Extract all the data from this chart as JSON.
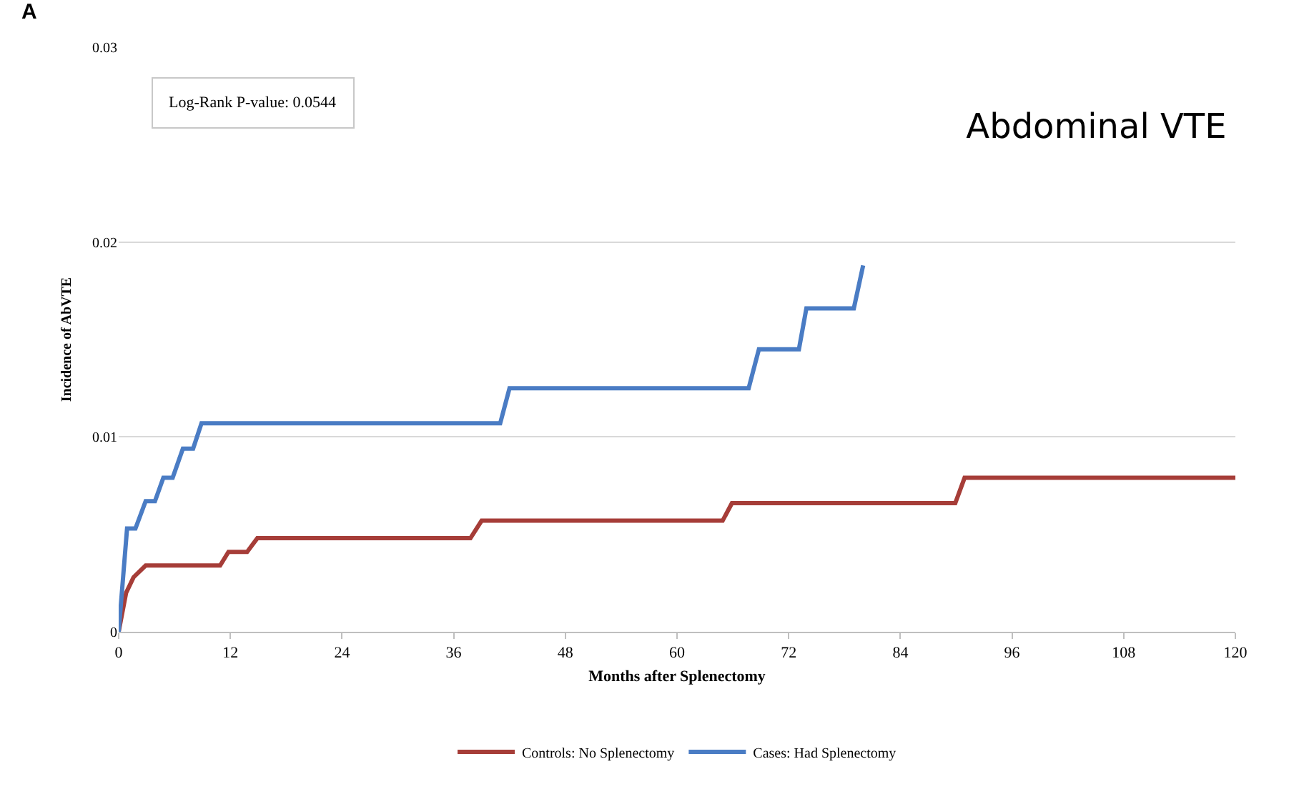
{
  "chart_data": {
    "type": "line",
    "title": "Abdominal VTE",
    "xlabel": "Months after Splenectomy",
    "ylabel": "Incidence of AbVTE",
    "annotations": [
      "A",
      "Log-Rank P-value: 0.0544"
    ],
    "xlim": [
      0,
      120
    ],
    "xticks": [
      0,
      12,
      24,
      36,
      48,
      60,
      72,
      84,
      96,
      108,
      120
    ],
    "ylim": [
      0,
      0.03
    ],
    "yticks": [
      0,
      0.01,
      0.02,
      0.03
    ],
    "grid": "y",
    "legend": "bottom",
    "marker": "none",
    "line_style": "solid",
    "series": [
      {
        "name": "Controls: No Splenectomy",
        "color": "#a63d38",
        "x": [
          0,
          0.8,
          1.6,
          2.9,
          10.9,
          11.8,
          13.8,
          14.9,
          37.8,
          39.0,
          64.9,
          65.9,
          89.9,
          90.9,
          120
        ],
        "values": [
          0,
          0.002,
          0.0028,
          0.0034,
          0.0034,
          0.0041,
          0.0041,
          0.0048,
          0.0048,
          0.0057,
          0.0057,
          0.0066,
          0.0066,
          0.0079,
          0.0079
        ]
      },
      {
        "name": "Cases: Had Splenectomy",
        "color": "#4a7cc4",
        "x": [
          0,
          0.9,
          1.8,
          2.9,
          3.9,
          4.8,
          5.8,
          6.9,
          8.0,
          8.9,
          41.0,
          42.0,
          67.7,
          68.8,
          73.1,
          73.9,
          79.0,
          80.0
        ],
        "values": [
          0,
          0.0053,
          0.0053,
          0.0067,
          0.0067,
          0.0079,
          0.0079,
          0.0094,
          0.0094,
          0.0107,
          0.0107,
          0.0125,
          0.0125,
          0.0145,
          0.0145,
          0.0166,
          0.0166,
          0.0188
        ]
      }
    ]
  }
}
